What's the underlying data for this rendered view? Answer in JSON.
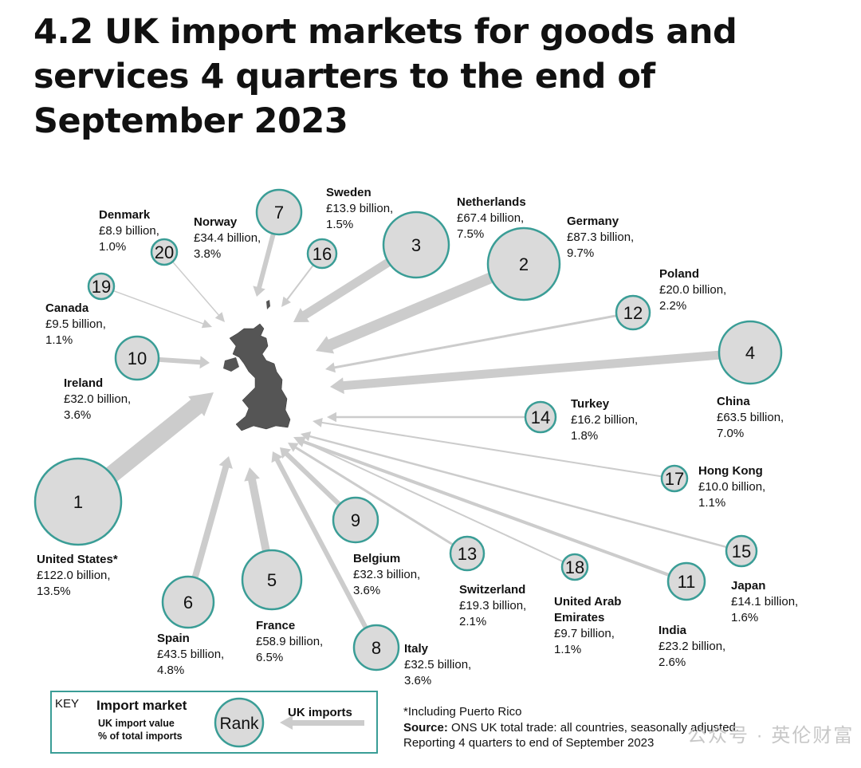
{
  "title": "4.2 UK import markets for goods and services 4 quarters to the end of September 2023",
  "colors": {
    "circle_fill": "#dadada",
    "circle_stroke": "#3a9d96",
    "arrow": "#cccccc",
    "map": "#555555"
  },
  "markets": [
    {
      "rank": "1",
      "name": "United States*",
      "value": "£122.0 billion,",
      "share": "13.5%"
    },
    {
      "rank": "2",
      "name": "Germany",
      "value": "£87.3 billion,",
      "share": "9.7%"
    },
    {
      "rank": "3",
      "name": "Netherlands",
      "value": "£67.4 billion,",
      "share": "7.5%"
    },
    {
      "rank": "4",
      "name": "China",
      "value": "£63.5 billion,",
      "share": "7.0%"
    },
    {
      "rank": "5",
      "name": "France",
      "value": "£58.9 billion,",
      "share": "6.5%"
    },
    {
      "rank": "6",
      "name": "Spain",
      "value": "£43.5 billion,",
      "share": "4.8%"
    },
    {
      "rank": "7",
      "name": "Norway",
      "value": "£34.4 billion,",
      "share": "3.8%"
    },
    {
      "rank": "8",
      "name": "Italy",
      "value": "£32.5 billion,",
      "share": "3.6%"
    },
    {
      "rank": "9",
      "name": "Belgium",
      "value": "£32.3 billion,",
      "share": "3.6%"
    },
    {
      "rank": "10",
      "name": "Ireland",
      "value": "£32.0 billion,",
      "share": "3.6%"
    },
    {
      "rank": "11",
      "name": "India",
      "value": "£23.2 billion,",
      "share": "2.6%"
    },
    {
      "rank": "12",
      "name": "Poland",
      "value": "£20.0 billion,",
      "share": "2.2%"
    },
    {
      "rank": "13",
      "name": "Switzerland",
      "value": "£19.3 billion,",
      "share": "2.1%"
    },
    {
      "rank": "14",
      "name": "Turkey",
      "value": "£16.2 billion,",
      "share": "1.8%"
    },
    {
      "rank": "15",
      "name": "Japan",
      "value": "£14.1 billion,",
      "share": "1.6%"
    },
    {
      "rank": "16",
      "name": "Sweden",
      "value": "£13.9 billion,",
      "share": "1.5%"
    },
    {
      "rank": "17",
      "name": "Hong Kong",
      "value": "£10.0 billion,",
      "share": "1.1%"
    },
    {
      "rank": "18",
      "name": "United Arab Emirates",
      "value": "£9.7 billion,",
      "share": "1.1%"
    },
    {
      "rank": "19",
      "name": "Canada",
      "value": "£9.5 billion,",
      "share": "1.1%"
    },
    {
      "rank": "20",
      "name": "Denmark",
      "value": "£8.9 billion,",
      "share": "1.0%"
    }
  ],
  "key": {
    "key_label": "KEY",
    "heading": "Import market",
    "line1": "UK import value",
    "line2": "% of total imports",
    "rank_label": "Rank",
    "arrow_label": "UK imports"
  },
  "footnote": "*Including Puerto Rico",
  "source_label": "Source:",
  "source_text": "ONS UK total trade: all countries, seasonally adjusted.",
  "source_line2": "Reporting 4 quarters to end of September 2023",
  "watermark": "公众号 · 英伦财富"
}
